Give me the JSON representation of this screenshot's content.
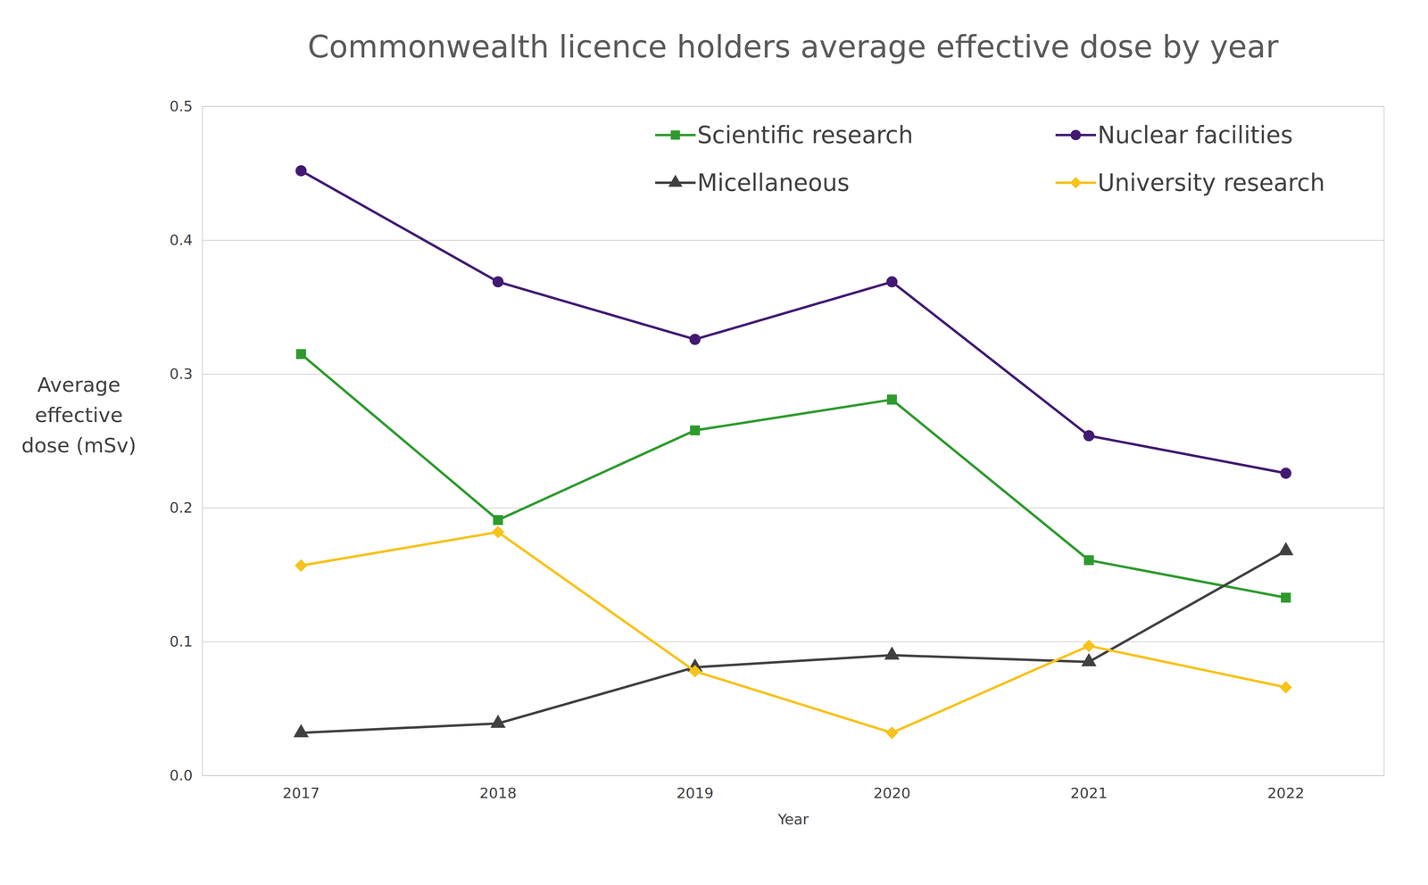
{
  "chart_data": {
    "type": "line",
    "title": "Commonwealth licence holders average effective dose by year",
    "xlabel": "Year",
    "ylabel": "Average effective dose (mSv)",
    "categories": [
      "2017",
      "2018",
      "2019",
      "2020",
      "2021",
      "2022"
    ],
    "series": [
      {
        "name": "Scientific research",
        "color": "#2e9a2e",
        "marker": "square",
        "values": [
          0.315,
          0.191,
          0.258,
          0.281,
          0.161,
          0.133
        ]
      },
      {
        "name": "Nuclear facilities",
        "color": "#421a72",
        "marker": "circle",
        "values": [
          0.452,
          0.369,
          0.326,
          0.369,
          0.254,
          0.226
        ]
      },
      {
        "name": "Micellaneous",
        "color": "#404040",
        "marker": "triangle",
        "values": [
          0.032,
          0.039,
          0.081,
          0.09,
          0.085,
          0.168
        ]
      },
      {
        "name": "University research",
        "color": "#f7c21b",
        "marker": "diamond",
        "values": [
          0.157,
          0.182,
          0.078,
          0.032,
          0.097,
          0.066
        ]
      }
    ],
    "ylim": [
      0,
      0.5
    ],
    "yticks": [
      {
        "value": 0,
        "label": "0.0"
      },
      0.1,
      0.2,
      0.3,
      0.4,
      0.5
    ],
    "grid": true,
    "legend": "top"
  }
}
